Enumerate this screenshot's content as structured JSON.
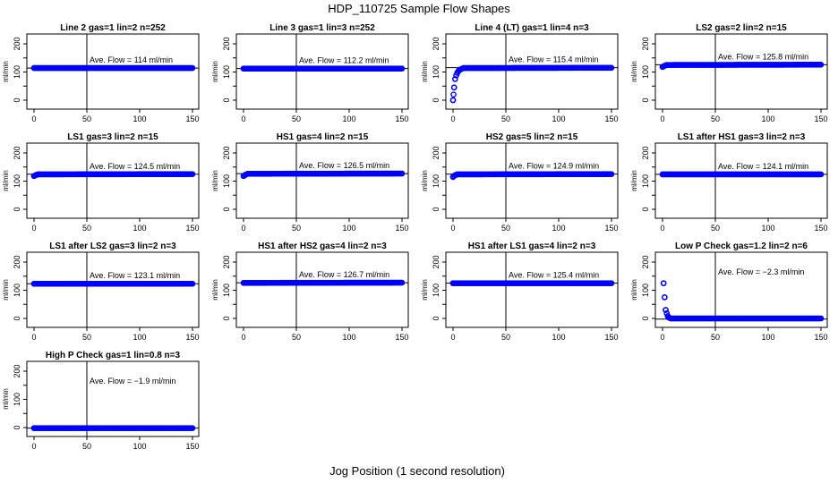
{
  "figure": {
    "title": "HDP_110725  Sample Flow Shapes",
    "xlabel": "Jog Position (1 second resolution)"
  },
  "chart_data": [
    {
      "type": "scatter",
      "title": "Line 2 gas=1 lin=2 n=252",
      "ylabel": "ml/min",
      "annotation": "Ave. Flow =  114  ml/min",
      "flow": 114,
      "vline_x": 50,
      "xlim": [
        0,
        150
      ],
      "ylim": [
        0,
        200
      ],
      "xticks": [
        0,
        50,
        100,
        150
      ],
      "yticks": [
        0,
        100,
        200
      ],
      "points": [
        [
          0,
          114
        ],
        [
          150,
          114
        ]
      ],
      "marker_color": "#0000ff"
    },
    {
      "type": "scatter",
      "title": "Line 3 gas=1 lin=3 n=252",
      "ylabel": "ml/min",
      "annotation": "Ave. Flow =  112.2  ml/min",
      "flow": 112.2,
      "vline_x": 50,
      "xlim": [
        0,
        150
      ],
      "ylim": [
        0,
        200
      ],
      "xticks": [
        0,
        50,
        100,
        150
      ],
      "yticks": [
        0,
        100,
        200
      ],
      "points": [
        [
          0,
          112
        ],
        [
          150,
          112
        ]
      ],
      "marker_color": "#0000ff"
    },
    {
      "type": "scatter",
      "title": "Line 4 (LT) gas=1 lin=4 n=3",
      "ylabel": "ml/min",
      "annotation": "Ave. Flow =  115.4  ml/min",
      "flow": 115.4,
      "vline_x": 50,
      "xlim": [
        0,
        150
      ],
      "ylim": [
        0,
        200
      ],
      "xticks": [
        0,
        50,
        100,
        150
      ],
      "yticks": [
        0,
        100,
        200
      ],
      "points": [
        [
          0,
          0
        ],
        [
          0.5,
          20
        ],
        [
          1,
          45
        ],
        [
          2,
          75
        ],
        [
          3,
          88
        ],
        [
          4,
          97
        ],
        [
          5,
          103
        ],
        [
          6,
          107
        ],
        [
          8,
          111
        ],
        [
          10,
          114
        ],
        [
          150,
          115
        ]
      ],
      "marker_color": "#0000ff"
    },
    {
      "type": "scatter",
      "title": "LS2 gas=2 lin=2 n=15",
      "ylabel": "ml/min",
      "annotation": "Ave. Flow =  125.8  ml/min",
      "flow": 125.8,
      "vline_x": 50,
      "xlim": [
        0,
        150
      ],
      "ylim": [
        0,
        200
      ],
      "xticks": [
        0,
        50,
        100,
        150
      ],
      "yticks": [
        0,
        100,
        200
      ],
      "points": [
        [
          0,
          118
        ],
        [
          2,
          122
        ],
        [
          4,
          125
        ],
        [
          150,
          126
        ]
      ],
      "marker_color": "#0000ff"
    },
    {
      "type": "scatter",
      "title": "LS1 gas=3 lin=2 n=15",
      "ylabel": "ml/min",
      "annotation": "Ave. Flow =  124.5  ml/min",
      "flow": 124.5,
      "vline_x": 50,
      "xlim": [
        0,
        150
      ],
      "ylim": [
        0,
        200
      ],
      "xticks": [
        0,
        50,
        100,
        150
      ],
      "yticks": [
        0,
        100,
        200
      ],
      "points": [
        [
          0,
          118
        ],
        [
          2,
          122
        ],
        [
          4,
          124
        ],
        [
          150,
          125
        ]
      ],
      "marker_color": "#0000ff"
    },
    {
      "type": "scatter",
      "title": "HS1 gas=4 lin=2 n=15",
      "ylabel": "ml/min",
      "annotation": "Ave. Flow =  126.5  ml/min",
      "flow": 126.5,
      "vline_x": 50,
      "xlim": [
        0,
        150
      ],
      "ylim": [
        0,
        200
      ],
      "xticks": [
        0,
        50,
        100,
        150
      ],
      "yticks": [
        0,
        100,
        200
      ],
      "points": [
        [
          0,
          118
        ],
        [
          2,
          123
        ],
        [
          4,
          126
        ],
        [
          150,
          127
        ]
      ],
      "marker_color": "#0000ff"
    },
    {
      "type": "scatter",
      "title": "HS2 gas=5 lin=2 n=15",
      "ylabel": "ml/min",
      "annotation": "Ave. Flow =  124.9  ml/min",
      "flow": 124.9,
      "vline_x": 50,
      "xlim": [
        0,
        150
      ],
      "ylim": [
        0,
        200
      ],
      "xticks": [
        0,
        50,
        100,
        150
      ],
      "yticks": [
        0,
        100,
        200
      ],
      "points": [
        [
          0,
          115
        ],
        [
          2,
          121
        ],
        [
          4,
          124
        ],
        [
          150,
          125
        ]
      ],
      "marker_color": "#0000ff"
    },
    {
      "type": "scatter",
      "title": "LS1 after HS1 gas=3 lin=2 n=3",
      "ylabel": "ml/min",
      "annotation": "Ave. Flow =  124.1  ml/min",
      "flow": 124.1,
      "vline_x": 50,
      "xlim": [
        0,
        150
      ],
      "ylim": [
        0,
        200
      ],
      "xticks": [
        0,
        50,
        100,
        150
      ],
      "yticks": [
        0,
        100,
        200
      ],
      "points": [
        [
          0,
          124
        ],
        [
          150,
          124
        ]
      ],
      "marker_color": "#0000ff"
    },
    {
      "type": "scatter",
      "title": "LS1 after LS2 gas=3 lin=2 n=3",
      "ylabel": "ml/min",
      "annotation": "Ave. Flow =  123.1  ml/min",
      "flow": 123.1,
      "vline_x": 50,
      "xlim": [
        0,
        150
      ],
      "ylim": [
        0,
        200
      ],
      "xticks": [
        0,
        50,
        100,
        150
      ],
      "yticks": [
        0,
        100,
        200
      ],
      "points": [
        [
          0,
          123
        ],
        [
          150,
          123
        ]
      ],
      "marker_color": "#0000ff"
    },
    {
      "type": "scatter",
      "title": "HS1 after HS2 gas=4 lin=2 n=3",
      "ylabel": "ml/min",
      "annotation": "Ave. Flow =  126.7  ml/min",
      "flow": 126.7,
      "vline_x": 50,
      "xlim": [
        0,
        150
      ],
      "ylim": [
        0,
        200
      ],
      "xticks": [
        0,
        50,
        100,
        150
      ],
      "yticks": [
        0,
        100,
        200
      ],
      "points": [
        [
          0,
          126
        ],
        [
          150,
          127
        ]
      ],
      "marker_color": "#0000ff"
    },
    {
      "type": "scatter",
      "title": "HS1 after LS1 gas=4 lin=2 n=3",
      "ylabel": "ml/min",
      "annotation": "Ave. Flow =  125.4  ml/min",
      "flow": 125.4,
      "vline_x": 50,
      "xlim": [
        0,
        150
      ],
      "ylim": [
        0,
        200
      ],
      "xticks": [
        0,
        50,
        100,
        150
      ],
      "yticks": [
        0,
        100,
        200
      ],
      "points": [
        [
          0,
          125
        ],
        [
          150,
          125
        ]
      ],
      "marker_color": "#0000ff"
    },
    {
      "type": "scatter",
      "title": "Low P Check gas=1.2 lin=2 n=6",
      "ylabel": "ml/min",
      "annotation": "Ave. Flow =  −2.3  ml/min",
      "flow": -2.3,
      "vline_x": 50,
      "xlim": [
        0,
        150
      ],
      "ylim": [
        0,
        200
      ],
      "xticks": [
        0,
        50,
        100,
        150
      ],
      "yticks": [
        0,
        100,
        200
      ],
      "points": [
        [
          1,
          125
        ],
        [
          2,
          75
        ],
        [
          3,
          30
        ],
        [
          4,
          18
        ],
        [
          5,
          8
        ],
        [
          6,
          3
        ],
        [
          8,
          0
        ],
        [
          150,
          0
        ]
      ],
      "marker_color": "#0000ff"
    },
    {
      "type": "scatter",
      "title": "High P Check gas=1 lin=0.8 n=3",
      "ylabel": "ml/min",
      "annotation": "Ave. Flow =  −1.9  ml/min",
      "flow": -1.9,
      "vline_x": 50,
      "xlim": [
        0,
        150
      ],
      "ylim": [
        0,
        200
      ],
      "xticks": [
        0,
        50,
        100,
        150
      ],
      "yticks": [
        0,
        100,
        200
      ],
      "points": [
        [
          0,
          -2
        ],
        [
          150,
          -2
        ]
      ],
      "marker_color": "#0000ff"
    }
  ]
}
